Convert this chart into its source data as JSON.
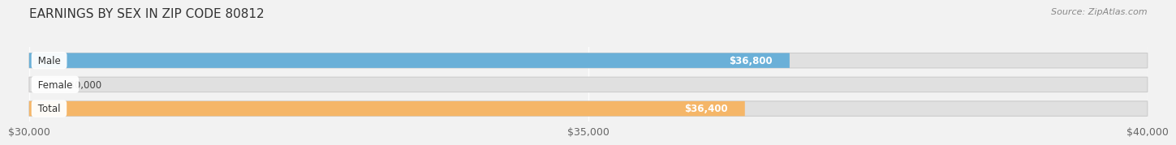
{
  "title": "EARNINGS BY SEX IN ZIP CODE 80812",
  "source": "Source: ZipAtlas.com",
  "categories": [
    "Male",
    "Female",
    "Total"
  ],
  "values": [
    36800,
    30000,
    36400
  ],
  "bar_colors": [
    "#6ab0d8",
    "#f4a0b5",
    "#f5b668"
  ],
  "bar_labels": [
    "$36,800",
    "$30,000",
    "$36,400"
  ],
  "xlim": [
    30000,
    40000
  ],
  "xticks": [
    30000,
    35000,
    40000
  ],
  "xtick_labels": [
    "$30,000",
    "$35,000",
    "$40,000"
  ],
  "background_color": "#f2f2f2",
  "bar_track_color": "#e0e0e0",
  "title_fontsize": 11,
  "tick_fontsize": 9,
  "bar_height": 0.62,
  "label_inside_threshold": 31500
}
